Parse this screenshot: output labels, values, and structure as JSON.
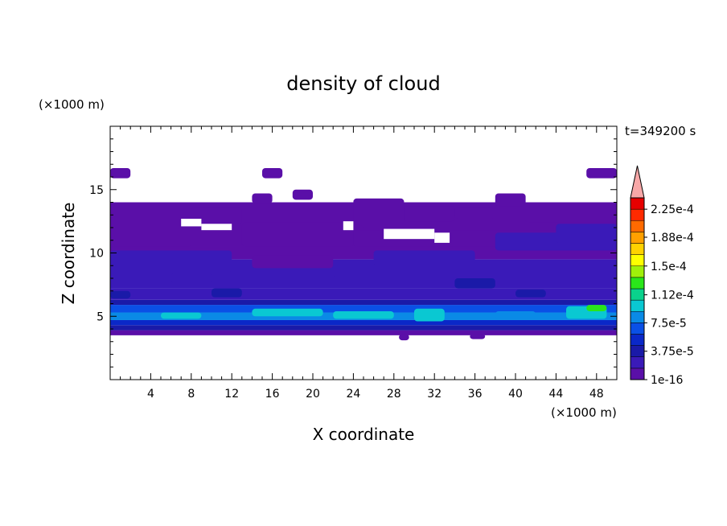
{
  "chart_data": {
    "type": "heatmap",
    "title": "density of cloud",
    "xlabel": "X coordinate",
    "ylabel": "Z coordinate",
    "x_unit": "(×1000 m)",
    "y_unit": "(×1000 m)",
    "time_label": "t=349200 s",
    "xlim": [
      0,
      50
    ],
    "ylim": [
      0,
      20
    ],
    "x_ticks": [
      4,
      8,
      12,
      16,
      20,
      24,
      28,
      32,
      36,
      40,
      44,
      48
    ],
    "y_ticks": [
      5,
      10,
      15
    ],
    "colorbar": {
      "min": 1e-16,
      "max": 0.00024,
      "tick_labels": [
        "2.25e-4",
        "1.88e-4",
        "1.5e-4",
        "1.12e-4",
        "7.5e-5",
        "3.75e-5",
        "1e-16"
      ],
      "tick_values": [
        0.000225,
        0.000188,
        0.00015,
        0.000112,
        7.5e-05,
        3.75e-05,
        1e-16
      ],
      "colors": [
        "#5a0fa8",
        "#3a1ab8",
        "#1a1aa8",
        "#0a28c8",
        "#0a50e6",
        "#0a8ae6",
        "#0ac8d2",
        "#0ad28c",
        "#2ae61a",
        "#a0f00a",
        "#ffff00",
        "#ffd200",
        "#ffa000",
        "#ff6a00",
        "#ff2a00",
        "#e60000"
      ],
      "overflow_color": "#f8a8a8"
    },
    "bands": [
      {
        "z": [
          3.5,
          3.9
        ],
        "level": 0.0
      },
      {
        "z": [
          3.9,
          4.3
        ],
        "level": 0.1
      },
      {
        "z": [
          4.3,
          4.7
        ],
        "level": 0.18
      },
      {
        "z": [
          4.7,
          5.3
        ],
        "level": 0.32
      },
      {
        "z": [
          5.3,
          5.9
        ],
        "level": 0.28
      },
      {
        "z": [
          5.9,
          6.3
        ],
        "level": 0.15
      },
      {
        "z": [
          6.3,
          7.2
        ],
        "level": 0.08
      },
      {
        "z": [
          7.2,
          9.5
        ],
        "level": 0.04
      },
      {
        "z": [
          9.5,
          14.0
        ],
        "level": 0.0
      }
    ],
    "cells": [
      {
        "x": [
          0,
          2
        ],
        "z": [
          15.9,
          16.7
        ],
        "level": 0.0
      },
      {
        "x": [
          15,
          17
        ],
        "z": [
          15.9,
          16.7
        ],
        "level": 0.0
      },
      {
        "x": [
          47,
          50
        ],
        "z": [
          15.9,
          16.7
        ],
        "level": 0.0
      },
      {
        "x": [
          14,
          16
        ],
        "z": [
          13.9,
          14.7
        ],
        "level": 0.0
      },
      {
        "x": [
          18,
          20
        ],
        "z": [
          14.2,
          15.0
        ],
        "level": 0.0
      },
      {
        "x": [
          38,
          41
        ],
        "z": [
          13.7,
          14.7
        ],
        "level": 0.0
      },
      {
        "x": [
          24,
          29
        ],
        "z": [
          12.3,
          14.3
        ],
        "level": 0.0
      },
      {
        "x": [
          29,
          34
        ],
        "z": [
          12.5,
          13.7
        ],
        "level": 0.0
      },
      {
        "x": [
          34,
          38
        ],
        "z": [
          12.7,
          13.6
        ],
        "level": 0.0
      },
      {
        "x": [
          41,
          50
        ],
        "z": [
          12.4,
          14.0
        ],
        "level": 0.0
      },
      {
        "x": [
          21,
          25
        ],
        "z": [
          11.2,
          12.2
        ],
        "level": 0.0
      },
      {
        "x": [
          8,
          13
        ],
        "z": [
          12.3,
          13.6
        ],
        "level": 0.0
      },
      {
        "x": [
          0,
          8
        ],
        "z": [
          10.5,
          12.6
        ],
        "level": 0.0
      },
      {
        "x": [
          13,
          24
        ],
        "z": [
          10.5,
          12.4
        ],
        "level": 0.0
      },
      {
        "x": [
          24,
          50
        ],
        "z": [
          10.5,
          11.8
        ],
        "level": 0.0
      },
      {
        "x": [
          38,
          50
        ],
        "z": [
          10.2,
          11.6
        ],
        "level": 0.04
      },
      {
        "x": [
          44,
          50
        ],
        "z": [
          10.8,
          12.3
        ],
        "level": 0.04
      },
      {
        "x": [
          0,
          12
        ],
        "z": [
          8.5,
          10.2
        ],
        "level": 0.04
      },
      {
        "x": [
          14,
          22
        ],
        "z": [
          8.8,
          9.8
        ],
        "level": 0.0
      },
      {
        "x": [
          26,
          36
        ],
        "z": [
          9.0,
          10.2
        ],
        "level": 0.04
      },
      {
        "x": [
          6,
          10
        ],
        "z": [
          7.6,
          8.4
        ],
        "level": 0.08
      },
      {
        "x": [
          22,
          26
        ],
        "z": [
          7.4,
          8.2
        ],
        "level": 0.08
      },
      {
        "x": [
          34,
          38
        ],
        "z": [
          7.2,
          8.0
        ],
        "level": 0.1
      },
      {
        "x": [
          0,
          2
        ],
        "z": [
          6.4,
          7.0
        ],
        "level": 0.15
      },
      {
        "x": [
          10,
          13
        ],
        "z": [
          6.5,
          7.2
        ],
        "level": 0.12
      },
      {
        "x": [
          40,
          43
        ],
        "z": [
          6.5,
          7.1
        ],
        "level": 0.12
      },
      {
        "x": [
          5,
          9
        ],
        "z": [
          4.8,
          5.3
        ],
        "level": 0.38
      },
      {
        "x": [
          14,
          21
        ],
        "z": [
          5.0,
          5.6
        ],
        "level": 0.38
      },
      {
        "x": [
          22,
          28
        ],
        "z": [
          4.8,
          5.4
        ],
        "level": 0.38
      },
      {
        "x": [
          30,
          33
        ],
        "z": [
          4.6,
          5.6
        ],
        "level": 0.42
      },
      {
        "x": [
          38,
          42
        ],
        "z": [
          4.8,
          5.4
        ],
        "level": 0.36
      },
      {
        "x": [
          45,
          49
        ],
        "z": [
          4.8,
          5.8
        ],
        "level": 0.42
      },
      {
        "x": [
          47,
          49
        ],
        "z": [
          5.4,
          5.9
        ],
        "level": 0.55
      },
      {
        "x": [
          28.5,
          29.5
        ],
        "z": [
          3.1,
          3.6
        ],
        "level": 0.0
      },
      {
        "x": [
          35.5,
          37
        ],
        "z": [
          3.2,
          3.6
        ],
        "level": 0.0
      }
    ],
    "clear_regions": [
      {
        "x": [
          7,
          9
        ],
        "z": [
          12.1,
          12.7
        ]
      },
      {
        "x": [
          9,
          12
        ],
        "z": [
          11.8,
          12.3
        ]
      },
      {
        "x": [
          23,
          24
        ],
        "z": [
          11.8,
          12.5
        ]
      },
      {
        "x": [
          27,
          32
        ],
        "z": [
          11.1,
          11.9
        ]
      },
      {
        "x": [
          32,
          33.5
        ],
        "z": [
          10.8,
          11.6
        ]
      }
    ]
  }
}
